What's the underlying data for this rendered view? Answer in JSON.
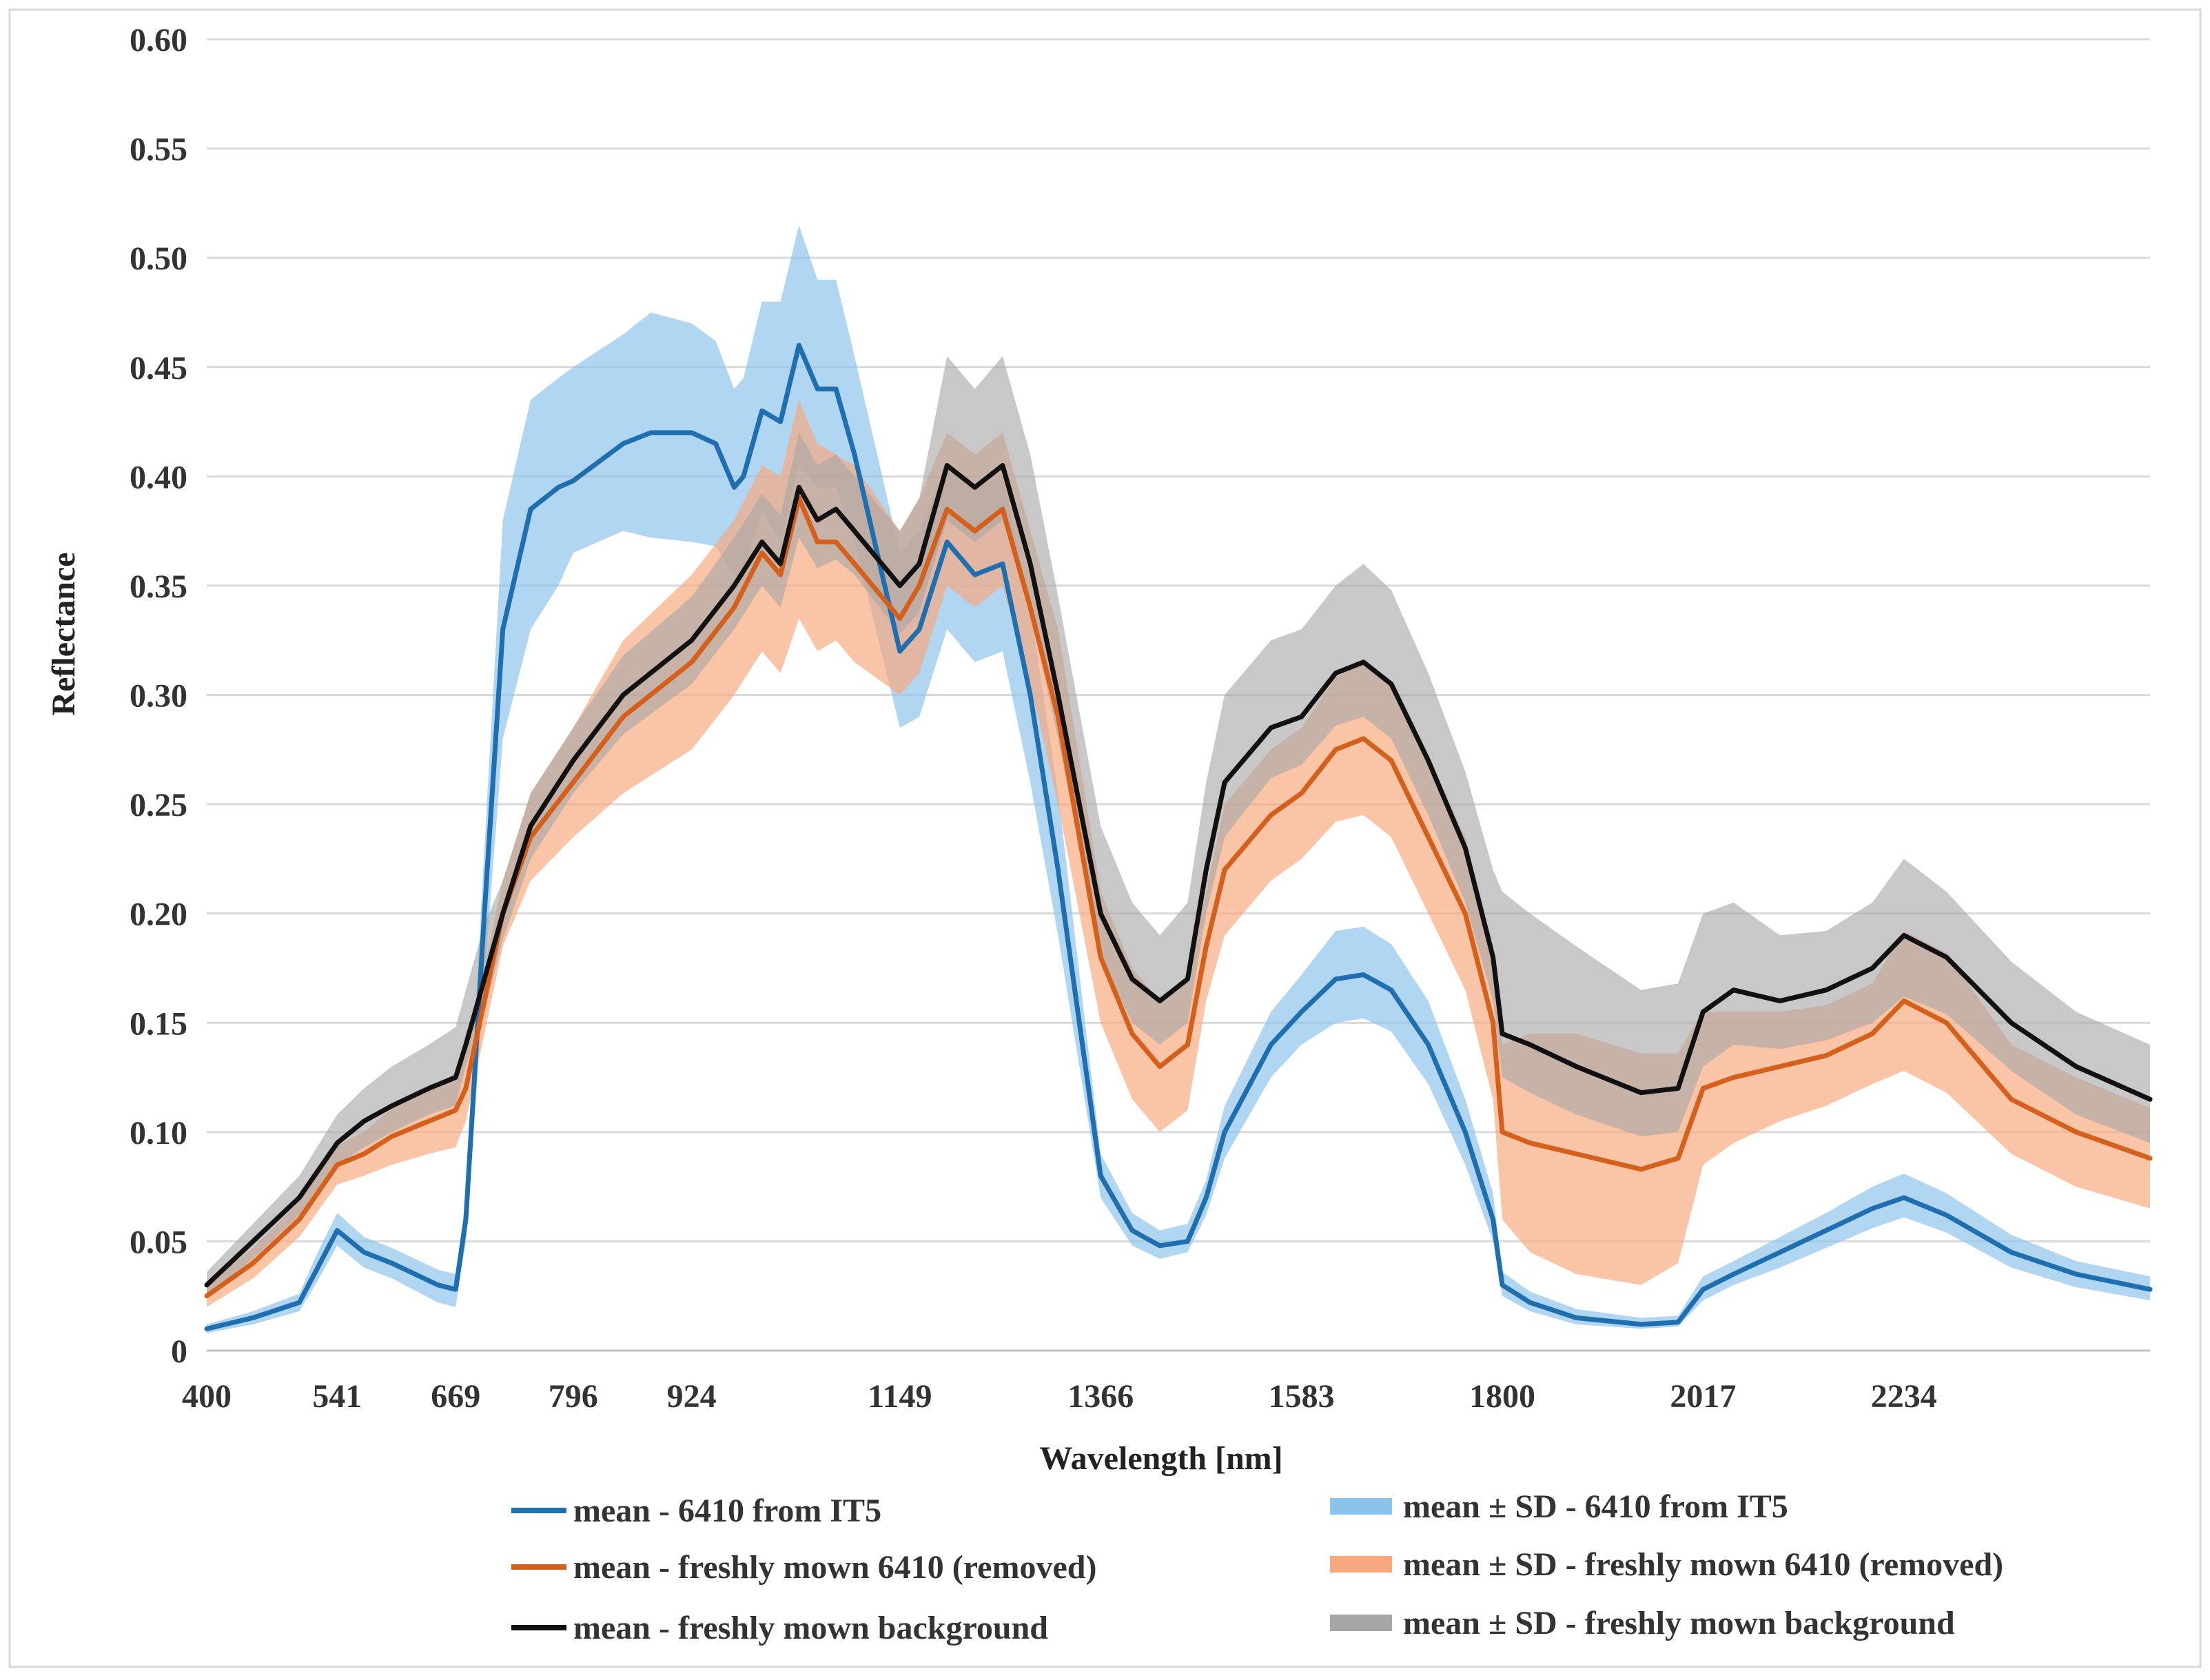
{
  "chart_data": {
    "type": "line",
    "title": "",
    "xlabel": "Wavelength [nm]",
    "ylabel": "Reflectance",
    "xlim": [
      400,
      2500
    ],
    "ylim": [
      0,
      0.6
    ],
    "grid": true,
    "legend_position": "bottom",
    "x_tick_labels": [
      "400",
      "541",
      "669",
      "796",
      "924",
      "1149",
      "1366",
      "1583",
      "1800",
      "2017",
      "2234"
    ],
    "x_tick_positions": [
      400,
      541,
      669,
      796,
      924,
      1149,
      1366,
      1583,
      1800,
      2017,
      2234
    ],
    "y_tick_labels": [
      "0",
      "0.05",
      "0.10",
      "0.15",
      "0.20",
      "0.25",
      "0.30",
      "0.35",
      "0.40",
      "0.45",
      "0.50",
      "0.55",
      "0.60"
    ],
    "y_tick_values": [
      0,
      0.05,
      0.1,
      0.15,
      0.2,
      0.25,
      0.3,
      0.35,
      0.4,
      0.45,
      0.5,
      0.55,
      0.6
    ],
    "series": [
      {
        "name": "mean - 6410 from IT5",
        "band_name": "mean ± SD - 6410 from IT5",
        "color": "#1f6fb0",
        "band_color": "#8cc3ea",
        "x": [
          400,
          450,
          500,
          520,
          541,
          570,
          600,
          650,
          669,
          680,
          700,
          720,
          750,
          780,
          796,
          850,
          880,
          924,
          950,
          970,
          980,
          1000,
          1020,
          1040,
          1060,
          1080,
          1100,
          1149,
          1170,
          1200,
          1230,
          1260,
          1290,
          1320,
          1366,
          1400,
          1430,
          1460,
          1480,
          1500,
          1550,
          1583,
          1620,
          1650,
          1680,
          1720,
          1760,
          1790,
          1800,
          1830,
          1880,
          1950,
          1990,
          2017,
          2050,
          2100,
          2150,
          2200,
          2234,
          2280,
          2350,
          2420,
          2500
        ],
        "mean": [
          0.01,
          0.015,
          0.022,
          0.038,
          0.055,
          0.045,
          0.04,
          0.03,
          0.028,
          0.06,
          0.2,
          0.33,
          0.385,
          0.395,
          0.398,
          0.415,
          0.42,
          0.42,
          0.415,
          0.395,
          0.4,
          0.43,
          0.425,
          0.46,
          0.44,
          0.44,
          0.41,
          0.32,
          0.33,
          0.37,
          0.355,
          0.36,
          0.3,
          0.22,
          0.08,
          0.055,
          0.048,
          0.05,
          0.07,
          0.1,
          0.14,
          0.155,
          0.17,
          0.172,
          0.165,
          0.14,
          0.1,
          0.06,
          0.03,
          0.022,
          0.015,
          0.012,
          0.013,
          0.028,
          0.035,
          0.045,
          0.055,
          0.065,
          0.07,
          0.062,
          0.045,
          0.035,
          0.028
        ],
        "lower": [
          0.008,
          0.012,
          0.018,
          0.032,
          0.048,
          0.038,
          0.033,
          0.022,
          0.02,
          0.05,
          0.17,
          0.28,
          0.33,
          0.35,
          0.365,
          0.375,
          0.372,
          0.37,
          0.368,
          0.355,
          0.355,
          0.385,
          0.37,
          0.405,
          0.395,
          0.395,
          0.37,
          0.285,
          0.29,
          0.33,
          0.315,
          0.32,
          0.26,
          0.19,
          0.07,
          0.048,
          0.042,
          0.045,
          0.062,
          0.088,
          0.125,
          0.14,
          0.15,
          0.152,
          0.146,
          0.122,
          0.085,
          0.05,
          0.025,
          0.018,
          0.012,
          0.01,
          0.011,
          0.023,
          0.03,
          0.038,
          0.047,
          0.056,
          0.061,
          0.054,
          0.038,
          0.029,
          0.023
        ],
        "upper": [
          0.012,
          0.018,
          0.026,
          0.045,
          0.063,
          0.052,
          0.047,
          0.037,
          0.035,
          0.07,
          0.23,
          0.38,
          0.435,
          0.445,
          0.45,
          0.465,
          0.475,
          0.47,
          0.462,
          0.44,
          0.445,
          0.48,
          0.48,
          0.515,
          0.49,
          0.49,
          0.455,
          0.365,
          0.375,
          0.405,
          0.395,
          0.4,
          0.34,
          0.255,
          0.09,
          0.063,
          0.055,
          0.058,
          0.078,
          0.112,
          0.155,
          0.172,
          0.192,
          0.194,
          0.186,
          0.16,
          0.115,
          0.072,
          0.036,
          0.027,
          0.019,
          0.015,
          0.016,
          0.034,
          0.041,
          0.052,
          0.063,
          0.075,
          0.081,
          0.072,
          0.053,
          0.041,
          0.034
        ]
      },
      {
        "name": "mean - freshly mown 6410 (removed)",
        "band_name": "mean ± SD - freshly mown 6410 (removed)",
        "color": "#d4601c",
        "band_color": "#f7a87e",
        "x": [
          400,
          450,
          500,
          541,
          570,
          600,
          640,
          669,
          680,
          700,
          720,
          750,
          796,
          850,
          924,
          970,
          1000,
          1020,
          1040,
          1060,
          1080,
          1100,
          1149,
          1170,
          1200,
          1230,
          1260,
          1290,
          1320,
          1366,
          1400,
          1430,
          1460,
          1480,
          1500,
          1550,
          1583,
          1620,
          1650,
          1680,
          1720,
          1760,
          1790,
          1800,
          1830,
          1880,
          1950,
          1990,
          2017,
          2050,
          2100,
          2150,
          2200,
          2234,
          2280,
          2350,
          2420,
          2500
        ],
        "mean": [
          0.025,
          0.04,
          0.06,
          0.085,
          0.09,
          0.098,
          0.105,
          0.11,
          0.12,
          0.16,
          0.2,
          0.235,
          0.26,
          0.29,
          0.315,
          0.34,
          0.365,
          0.355,
          0.39,
          0.37,
          0.37,
          0.36,
          0.335,
          0.35,
          0.385,
          0.375,
          0.385,
          0.34,
          0.29,
          0.18,
          0.145,
          0.13,
          0.14,
          0.185,
          0.22,
          0.245,
          0.255,
          0.275,
          0.28,
          0.27,
          0.235,
          0.2,
          0.15,
          0.1,
          0.095,
          0.09,
          0.083,
          0.088,
          0.12,
          0.125,
          0.13,
          0.135,
          0.145,
          0.16,
          0.15,
          0.115,
          0.1,
          0.088
        ],
        "lower": [
          0.02,
          0.033,
          0.052,
          0.076,
          0.08,
          0.085,
          0.09,
          0.093,
          0.105,
          0.145,
          0.185,
          0.215,
          0.235,
          0.255,
          0.275,
          0.3,
          0.32,
          0.31,
          0.335,
          0.32,
          0.325,
          0.315,
          0.3,
          0.31,
          0.35,
          0.34,
          0.35,
          0.305,
          0.25,
          0.15,
          0.115,
          0.1,
          0.11,
          0.16,
          0.19,
          0.215,
          0.225,
          0.242,
          0.245,
          0.235,
          0.2,
          0.165,
          0.115,
          0.06,
          0.045,
          0.035,
          0.03,
          0.04,
          0.085,
          0.095,
          0.105,
          0.112,
          0.122,
          0.128,
          0.118,
          0.09,
          0.075,
          0.065
        ],
        "upper": [
          0.03,
          0.047,
          0.068,
          0.094,
          0.1,
          0.111,
          0.12,
          0.127,
          0.135,
          0.175,
          0.215,
          0.255,
          0.285,
          0.325,
          0.355,
          0.38,
          0.405,
          0.4,
          0.435,
          0.415,
          0.41,
          0.405,
          0.375,
          0.39,
          0.42,
          0.41,
          0.42,
          0.375,
          0.33,
          0.21,
          0.175,
          0.16,
          0.17,
          0.21,
          0.25,
          0.275,
          0.285,
          0.308,
          0.315,
          0.305,
          0.27,
          0.235,
          0.185,
          0.14,
          0.145,
          0.145,
          0.136,
          0.136,
          0.155,
          0.155,
          0.155,
          0.158,
          0.168,
          0.192,
          0.182,
          0.14,
          0.125,
          0.111
        ]
      },
      {
        "name": "mean - freshly mown background",
        "band_name": "mean ± SD - freshly mown background",
        "color": "#111111",
        "band_color": "#a6a6a6",
        "x": [
          400,
          450,
          500,
          541,
          570,
          600,
          640,
          669,
          680,
          700,
          720,
          750,
          796,
          850,
          924,
          970,
          1000,
          1020,
          1040,
          1060,
          1080,
          1100,
          1149,
          1170,
          1200,
          1230,
          1260,
          1290,
          1320,
          1366,
          1400,
          1430,
          1460,
          1480,
          1500,
          1550,
          1583,
          1620,
          1650,
          1680,
          1720,
          1760,
          1790,
          1800,
          1830,
          1880,
          1950,
          1990,
          2017,
          2050,
          2100,
          2150,
          2200,
          2234,
          2280,
          2350,
          2420,
          2500
        ],
        "mean": [
          0.03,
          0.05,
          0.07,
          0.095,
          0.105,
          0.112,
          0.12,
          0.125,
          0.14,
          0.17,
          0.2,
          0.24,
          0.27,
          0.3,
          0.325,
          0.35,
          0.37,
          0.36,
          0.395,
          0.38,
          0.385,
          0.375,
          0.35,
          0.36,
          0.405,
          0.395,
          0.405,
          0.36,
          0.3,
          0.2,
          0.17,
          0.16,
          0.17,
          0.22,
          0.26,
          0.285,
          0.29,
          0.31,
          0.315,
          0.305,
          0.27,
          0.23,
          0.18,
          0.145,
          0.14,
          0.13,
          0.118,
          0.12,
          0.155,
          0.165,
          0.16,
          0.165,
          0.175,
          0.19,
          0.18,
          0.15,
          0.13,
          0.115
        ],
        "lower": [
          0.025,
          0.042,
          0.062,
          0.085,
          0.093,
          0.1,
          0.108,
          0.112,
          0.13,
          0.155,
          0.188,
          0.225,
          0.255,
          0.282,
          0.305,
          0.33,
          0.35,
          0.34,
          0.372,
          0.358,
          0.362,
          0.355,
          0.328,
          0.338,
          0.38,
          0.37,
          0.38,
          0.338,
          0.28,
          0.18,
          0.15,
          0.14,
          0.15,
          0.2,
          0.235,
          0.262,
          0.268,
          0.286,
          0.29,
          0.28,
          0.245,
          0.205,
          0.16,
          0.125,
          0.118,
          0.108,
          0.098,
          0.1,
          0.13,
          0.14,
          0.138,
          0.142,
          0.15,
          0.162,
          0.154,
          0.128,
          0.108,
          0.095
        ],
        "upper": [
          0.036,
          0.058,
          0.08,
          0.108,
          0.12,
          0.13,
          0.14,
          0.148,
          0.165,
          0.195,
          0.215,
          0.255,
          0.285,
          0.318,
          0.345,
          0.372,
          0.392,
          0.382,
          0.42,
          0.405,
          0.41,
          0.4,
          0.375,
          0.39,
          0.455,
          0.44,
          0.455,
          0.41,
          0.345,
          0.24,
          0.205,
          0.19,
          0.205,
          0.26,
          0.3,
          0.325,
          0.33,
          0.35,
          0.36,
          0.348,
          0.31,
          0.265,
          0.22,
          0.21,
          0.2,
          0.185,
          0.165,
          0.168,
          0.2,
          0.205,
          0.19,
          0.192,
          0.205,
          0.225,
          0.21,
          0.178,
          0.155,
          0.14
        ]
      }
    ]
  }
}
